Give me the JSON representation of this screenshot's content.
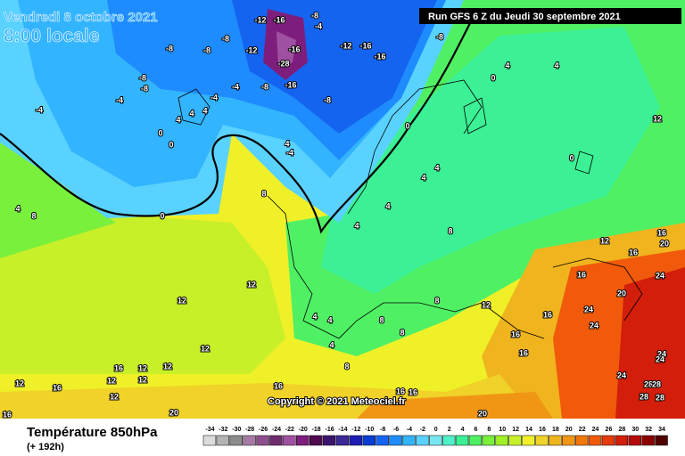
{
  "header": {
    "title": "Vendredi 8 octobre 2021",
    "subtitle": "8:00 locale",
    "run": "Run GFS 6 Z du Jeudi 30 septembre 2021"
  },
  "copyright": "Copyright © 2021 Meteociel.fr",
  "footer": {
    "title": "Température 850hPa",
    "lead": "(+ 192h)"
  },
  "legend": {
    "labels": [
      -34,
      -32,
      -30,
      -28,
      -26,
      -24,
      -22,
      -20,
      -18,
      -16,
      -14,
      -12,
      -10,
      -8,
      -6,
      -4,
      -2,
      0,
      2,
      4,
      6,
      8,
      10,
      12,
      14,
      16,
      18,
      20,
      22,
      24,
      26,
      28,
      30,
      32,
      34
    ],
    "colors": [
      "#dcdcdc",
      "#b4b4b4",
      "#8c8c8c",
      "#a57aa5",
      "#8c508c",
      "#6e2d6e",
      "#a050a0",
      "#7d1e7d",
      "#500a50",
      "#3c146e",
      "#3c2896",
      "#1e1eb4",
      "#0a3cd2",
      "#1464f0",
      "#1e8cff",
      "#32b4ff",
      "#5ad2ff",
      "#78e6f0",
      "#50f0c8",
      "#3cf096",
      "#50f064",
      "#78f03c",
      "#a0f028",
      "#c8f028",
      "#f0f028",
      "#f0d228",
      "#f0b41e",
      "#f09614",
      "#f0780a",
      "#f05a0a",
      "#e63c0a",
      "#d21e0a",
      "#b40a0a",
      "#8c0000",
      "#500000"
    ]
  },
  "map_labels": [
    -8,
    -8,
    -8,
    -12,
    -16,
    -8,
    -4,
    -12,
    -16,
    -16,
    -12,
    -28,
    -16,
    -8,
    -4,
    -8,
    -16,
    -8,
    -8,
    -8,
    -4,
    -4,
    -4,
    4,
    4,
    4,
    0,
    0,
    4,
    -4,
    0,
    0,
    4,
    4,
    12,
    0,
    8,
    0,
    8,
    4,
    4,
    4,
    4,
    4,
    8,
    12,
    16,
    20,
    16,
    16,
    20,
    24,
    12,
    12,
    12,
    12,
    16,
    16,
    16,
    8,
    4,
    4,
    8,
    8,
    4,
    8,
    16,
    12,
    12,
    12,
    12,
    16,
    12,
    12,
    16,
    16,
    16,
    20,
    20,
    16,
    24,
    24,
    24,
    28,
    28,
    28,
    28,
    24,
    24
  ]
}
